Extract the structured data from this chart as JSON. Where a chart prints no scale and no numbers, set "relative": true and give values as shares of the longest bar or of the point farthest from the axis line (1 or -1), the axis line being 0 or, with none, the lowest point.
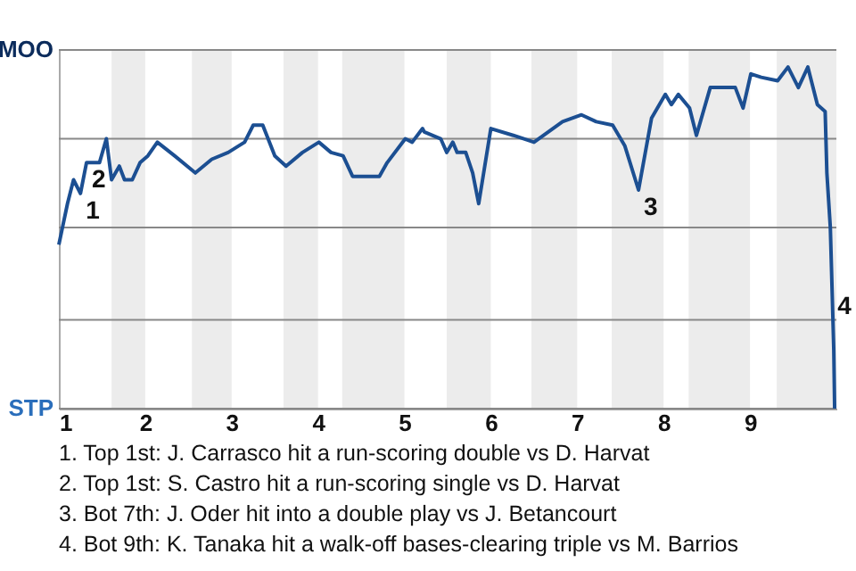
{
  "chart_data": {
    "type": "line",
    "relative": true,
    "x": [
      1.0,
      1.1,
      1.17,
      1.25,
      1.32,
      1.47,
      1.55,
      1.61,
      1.7,
      1.76,
      1.85,
      1.94,
      2.03,
      2.14,
      2.34,
      2.58,
      2.77,
      2.96,
      3.15,
      3.25,
      3.36,
      3.5,
      3.63,
      3.82,
      4.01,
      4.15,
      4.29,
      4.4,
      4.71,
      4.8,
      5.01,
      5.09,
      5.21,
      5.23,
      5.42,
      5.49,
      5.56,
      5.61,
      5.71,
      5.79,
      5.86,
      6.0,
      6.26,
      6.5,
      6.83,
      7.05,
      7.22,
      7.41,
      7.55,
      7.71,
      7.86,
      8.02,
      8.09,
      8.17,
      8.3,
      8.38,
      8.54,
      8.83,
      8.92,
      9.01,
      9.13,
      9.32,
      9.44,
      9.56,
      9.67,
      9.78,
      9.87,
      9.89,
      9.93,
      9.95,
      9.97,
      9.98
    ],
    "series": [
      {
        "color": "#1c4f92",
        "values": [
          0.48,
          0.6,
          0.67,
          0.63,
          0.72,
          0.72,
          0.79,
          0.67,
          0.71,
          0.67,
          0.67,
          0.72,
          0.74,
          0.78,
          0.74,
          0.69,
          0.73,
          0.75,
          0.78,
          0.83,
          0.83,
          0.74,
          0.71,
          0.75,
          0.78,
          0.75,
          0.74,
          0.68,
          0.68,
          0.72,
          0.79,
          0.78,
          0.82,
          0.81,
          0.79,
          0.75,
          0.78,
          0.75,
          0.75,
          0.69,
          0.6,
          0.82,
          0.8,
          0.78,
          0.84,
          0.86,
          0.84,
          0.83,
          0.77,
          0.64,
          0.85,
          0.92,
          0.89,
          0.92,
          0.88,
          0.8,
          0.94,
          0.94,
          0.88,
          0.98,
          0.97,
          0.96,
          1,
          0.94,
          1,
          0.89,
          0.87,
          0.69,
          0.53,
          0.35,
          0.17,
          0
        ]
      }
    ],
    "xlim": [
      1,
      10
    ],
    "xticks": [
      1,
      2,
      3,
      4,
      5,
      6,
      7,
      8,
      9
    ],
    "ref_lines": [
      {
        "axis": "y",
        "value": 0,
        "label": "STP"
      },
      {
        "axis": "y",
        "value": 0.26
      },
      {
        "axis": "y",
        "value": 0.53
      },
      {
        "axis": "y",
        "value": 0.79
      },
      {
        "axis": "y",
        "value": 1.05,
        "label": "MOO"
      }
    ],
    "bands": [
      {
        "axis": "x",
        "from": 1.61,
        "to": 2,
        "color": "#ececec"
      },
      {
        "axis": "x",
        "from": 2.54,
        "to": 3,
        "color": "#ececec"
      },
      {
        "axis": "x",
        "from": 3.6,
        "to": 4,
        "color": "#ececec"
      },
      {
        "axis": "x",
        "from": 4.28,
        "to": 5,
        "color": "#ececec"
      },
      {
        "axis": "x",
        "from": 5.49,
        "to": 6,
        "color": "#ececec"
      },
      {
        "axis": "x",
        "from": 6.47,
        "to": 7,
        "color": "#ececec"
      },
      {
        "axis": "x",
        "from": 7.4,
        "to": 8,
        "color": "#ececec"
      },
      {
        "axis": "x",
        "from": 8.29,
        "to": 9,
        "color": "#ececec"
      },
      {
        "axis": "x",
        "from": 9.31,
        "to": 10,
        "color": "#ececec"
      }
    ],
    "annotations": [
      {
        "text": "1",
        "x": 1.25,
        "y": 0.63
      },
      {
        "text": "2",
        "x": 1.32,
        "y": 0.72
      },
      {
        "text": "3",
        "x": 7.71,
        "y": 0.64
      },
      {
        "text": "4",
        "x": 9.95,
        "y": 0.35
      },
      "1. Top 1st: J. Carrasco hit a run-scoring double vs D. Harvat",
      "2. Top 1st: S. Castro hit a run-scoring single vs D. Harvat",
      "3. Bot 7th: J. Oder hit into a double play vs J. Betancourt",
      "4. Bot 9th: K. Tanaka hit a walk-off bases-clearing triple vs M. Barrios"
    ],
    "line_style": "solid"
  }
}
